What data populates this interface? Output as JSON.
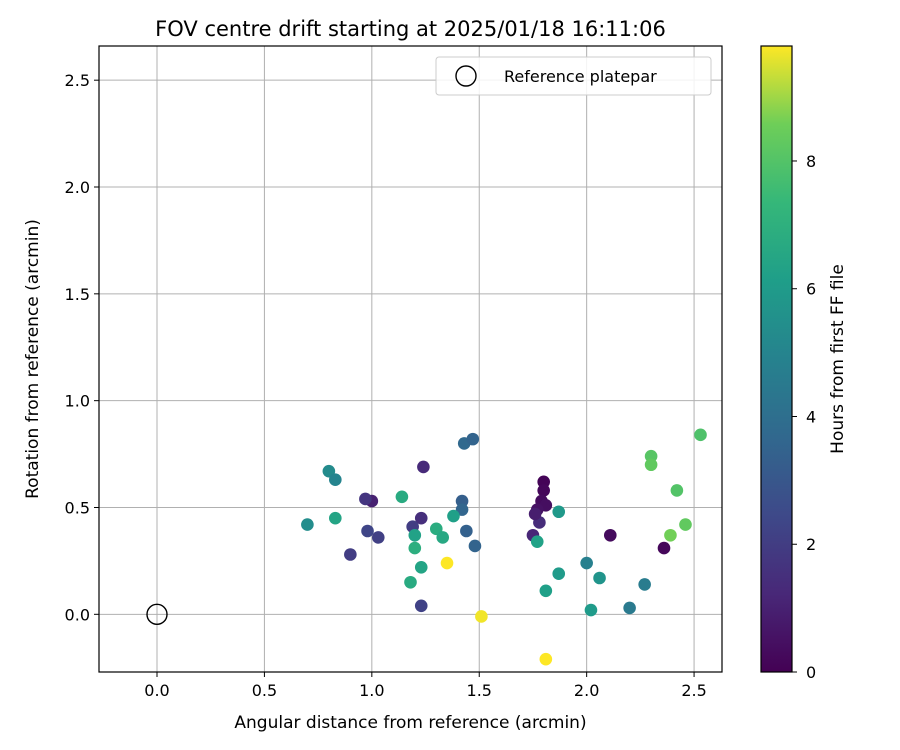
{
  "chart_data": {
    "type": "scatter",
    "title": "FOV centre drift starting at 2025/01/18 16:11:06",
    "xlabel": "Angular distance from reference (arcmin)",
    "ylabel": "Rotation from reference (arcmin)",
    "xlim": [
      -0.27,
      2.63
    ],
    "ylim": [
      -0.27,
      2.66
    ],
    "xticks": [
      0.0,
      0.5,
      1.0,
      1.5,
      2.0,
      2.5
    ],
    "yticks": [
      0.0,
      0.5,
      1.0,
      1.5,
      2.0,
      2.5
    ],
    "xtick_labels": [
      "0.0",
      "0.5",
      "1.0",
      "1.5",
      "2.0",
      "2.5"
    ],
    "ytick_labels": [
      "0.0",
      "0.5",
      "1.0",
      "1.5",
      "2.0",
      "2.5"
    ],
    "grid": true,
    "legend": {
      "placement": "top-right",
      "entries": [
        "Reference platepar"
      ]
    },
    "reference_point": {
      "x": 0.0,
      "y": 0.0
    },
    "colorbar": {
      "label": "Hours from first FF file",
      "range": [
        0,
        9.8
      ],
      "ticks": [
        0,
        2,
        4,
        6,
        8
      ],
      "tick_labels": [
        "0",
        "2",
        "4",
        "6",
        "8"
      ],
      "colormap": "viridis"
    },
    "points": [
      {
        "x": 1.8,
        "y": 0.62,
        "h": 0.1
      },
      {
        "x": 1.8,
        "y": 0.58,
        "h": 0.2
      },
      {
        "x": 1.79,
        "y": 0.53,
        "h": 0.3
      },
      {
        "x": 1.81,
        "y": 0.51,
        "h": 0.4
      },
      {
        "x": 1.77,
        "y": 0.49,
        "h": 0.5
      },
      {
        "x": 1.78,
        "y": 0.43,
        "h": 1.4
      },
      {
        "x": 1.76,
        "y": 0.47,
        "h": 0.9
      },
      {
        "x": 1.75,
        "y": 0.37,
        "h": 1.2
      },
      {
        "x": 2.11,
        "y": 0.37,
        "h": 0.3
      },
      {
        "x": 2.36,
        "y": 0.31,
        "h": 0.2
      },
      {
        "x": 1.24,
        "y": 0.69,
        "h": 1.3
      },
      {
        "x": 1.0,
        "y": 0.53,
        "h": 1.0
      },
      {
        "x": 0.97,
        "y": 0.54,
        "h": 1.7
      },
      {
        "x": 1.23,
        "y": 0.45,
        "h": 1.5
      },
      {
        "x": 1.19,
        "y": 0.41,
        "h": 2.0
      },
      {
        "x": 0.98,
        "y": 0.39,
        "h": 2.3
      },
      {
        "x": 1.03,
        "y": 0.36,
        "h": 2.1
      },
      {
        "x": 0.9,
        "y": 0.28,
        "h": 2.0
      },
      {
        "x": 1.23,
        "y": 0.04,
        "h": 2.2
      },
      {
        "x": 1.43,
        "y": 0.8,
        "h": 3.7
      },
      {
        "x": 1.47,
        "y": 0.82,
        "h": 3.5
      },
      {
        "x": 1.42,
        "y": 0.53,
        "h": 3.3
      },
      {
        "x": 1.42,
        "y": 0.49,
        "h": 3.6
      },
      {
        "x": 1.44,
        "y": 0.39,
        "h": 3.4
      },
      {
        "x": 1.48,
        "y": 0.32,
        "h": 3.5
      },
      {
        "x": 0.8,
        "y": 0.67,
        "h": 5.3
      },
      {
        "x": 0.83,
        "y": 0.63,
        "h": 5.0
      },
      {
        "x": 0.7,
        "y": 0.42,
        "h": 5.4
      },
      {
        "x": 0.83,
        "y": 0.45,
        "h": 6.4
      },
      {
        "x": 1.14,
        "y": 0.55,
        "h": 6.7
      },
      {
        "x": 1.3,
        "y": 0.4,
        "h": 6.8
      },
      {
        "x": 1.33,
        "y": 0.36,
        "h": 6.6
      },
      {
        "x": 1.38,
        "y": 0.46,
        "h": 6.2
      },
      {
        "x": 1.2,
        "y": 0.37,
        "h": 6.3
      },
      {
        "x": 1.2,
        "y": 0.31,
        "h": 6.9
      },
      {
        "x": 1.23,
        "y": 0.22,
        "h": 6.4
      },
      {
        "x": 1.18,
        "y": 0.15,
        "h": 6.7
      },
      {
        "x": 1.35,
        "y": 0.24,
        "h": 9.8
      },
      {
        "x": 1.51,
        "y": -0.01,
        "h": 9.7
      },
      {
        "x": 1.81,
        "y": -0.21,
        "h": 9.8
      },
      {
        "x": 1.77,
        "y": 0.34,
        "h": 6.3
      },
      {
        "x": 1.87,
        "y": 0.48,
        "h": 5.9
      },
      {
        "x": 1.87,
        "y": 0.19,
        "h": 6.0
      },
      {
        "x": 1.81,
        "y": 0.11,
        "h": 6.2
      },
      {
        "x": 2.0,
        "y": 0.24,
        "h": 4.8
      },
      {
        "x": 2.06,
        "y": 0.17,
        "h": 5.7
      },
      {
        "x": 2.02,
        "y": 0.02,
        "h": 6.0
      },
      {
        "x": 2.27,
        "y": 0.14,
        "h": 4.6
      },
      {
        "x": 2.2,
        "y": 0.03,
        "h": 4.5
      },
      {
        "x": 2.3,
        "y": 0.74,
        "h": 8.1
      },
      {
        "x": 2.3,
        "y": 0.7,
        "h": 8.3
      },
      {
        "x": 2.42,
        "y": 0.58,
        "h": 8.0
      },
      {
        "x": 2.39,
        "y": 0.37,
        "h": 8.6
      },
      {
        "x": 2.46,
        "y": 0.42,
        "h": 8.3
      },
      {
        "x": 2.53,
        "y": 0.84,
        "h": 7.9
      }
    ]
  }
}
